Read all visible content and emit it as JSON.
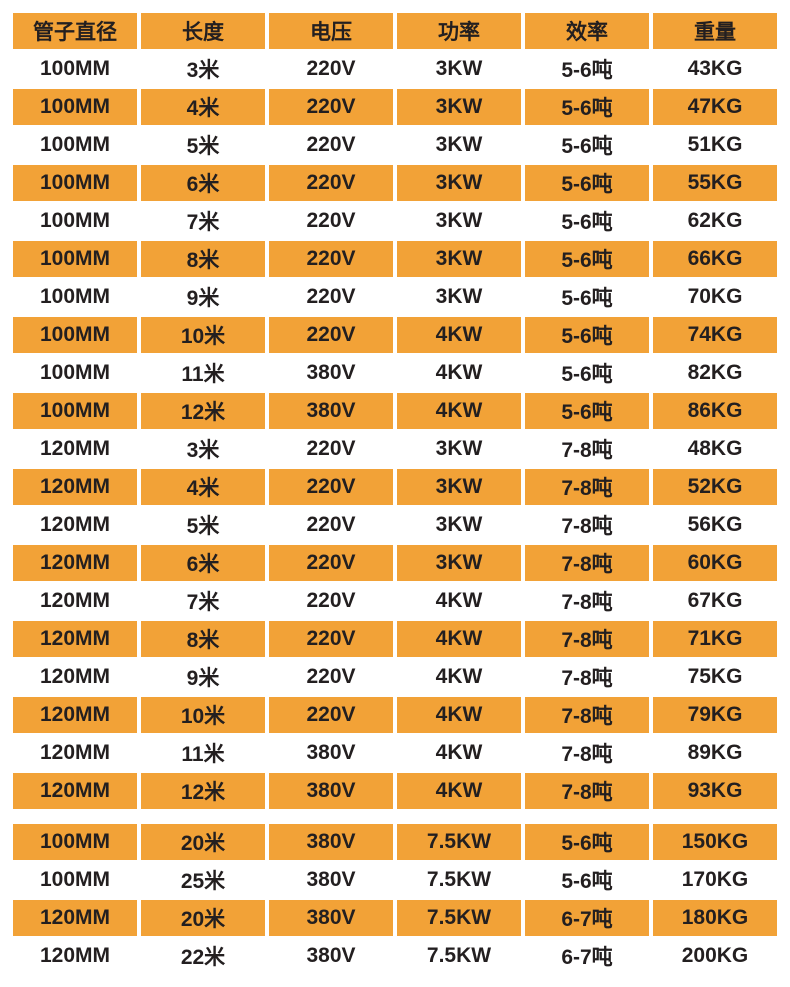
{
  "colors": {
    "orange": "#F2A237",
    "text": "#231F20",
    "background": "#FFFFFF"
  },
  "chart_data": {
    "type": "table",
    "title": "",
    "columns": [
      "管子直径",
      "长度",
      "电压",
      "功率",
      "效率",
      "重量"
    ],
    "layout": {
      "header_background": "orange",
      "row_striping": "alternating white/orange",
      "section_gap_before_extended_rows": true
    },
    "sections": [
      {
        "name": "standard",
        "rows": [
          [
            "100MM",
            "3米",
            "220V",
            "3KW",
            "5-6吨",
            "43KG"
          ],
          [
            "100MM",
            "4米",
            "220V",
            "3KW",
            "5-6吨",
            "47KG"
          ],
          [
            "100MM",
            "5米",
            "220V",
            "3KW",
            "5-6吨",
            "51KG"
          ],
          [
            "100MM",
            "6米",
            "220V",
            "3KW",
            "5-6吨",
            "55KG"
          ],
          [
            "100MM",
            "7米",
            "220V",
            "3KW",
            "5-6吨",
            "62KG"
          ],
          [
            "100MM",
            "8米",
            "220V",
            "3KW",
            "5-6吨",
            "66KG"
          ],
          [
            "100MM",
            "9米",
            "220V",
            "3KW",
            "5-6吨",
            "70KG"
          ],
          [
            "100MM",
            "10米",
            "220V",
            "4KW",
            "5-6吨",
            "74KG"
          ],
          [
            "100MM",
            "11米",
            "380V",
            "4KW",
            "5-6吨",
            "82KG"
          ],
          [
            "100MM",
            "12米",
            "380V",
            "4KW",
            "5-6吨",
            "86KG"
          ],
          [
            "120MM",
            "3米",
            "220V",
            "3KW",
            "7-8吨",
            "48KG"
          ],
          [
            "120MM",
            "4米",
            "220V",
            "3KW",
            "7-8吨",
            "52KG"
          ],
          [
            "120MM",
            "5米",
            "220V",
            "3KW",
            "7-8吨",
            "56KG"
          ],
          [
            "120MM",
            "6米",
            "220V",
            "3KW",
            "7-8吨",
            "60KG"
          ],
          [
            "120MM",
            "7米",
            "220V",
            "4KW",
            "7-8吨",
            "67KG"
          ],
          [
            "120MM",
            "8米",
            "220V",
            "4KW",
            "7-8吨",
            "71KG"
          ],
          [
            "120MM",
            "9米",
            "220V",
            "4KW",
            "7-8吨",
            "75KG"
          ],
          [
            "120MM",
            "10米",
            "220V",
            "4KW",
            "7-8吨",
            "79KG"
          ],
          [
            "120MM",
            "11米",
            "380V",
            "4KW",
            "7-8吨",
            "89KG"
          ],
          [
            "120MM",
            "12米",
            "380V",
            "4KW",
            "7-8吨",
            "93KG"
          ]
        ]
      },
      {
        "name": "extended",
        "rows": [
          [
            "100MM",
            "20米",
            "380V",
            "7.5KW",
            "5-6吨",
            "150KG"
          ],
          [
            "100MM",
            "25米",
            "380V",
            "7.5KW",
            "5-6吨",
            "170KG"
          ],
          [
            "120MM",
            "20米",
            "380V",
            "7.5KW",
            "6-7吨",
            "180KG"
          ],
          [
            "120MM",
            "22米",
            "380V",
            "7.5KW",
            "6-7吨",
            "200KG"
          ]
        ]
      }
    ]
  }
}
